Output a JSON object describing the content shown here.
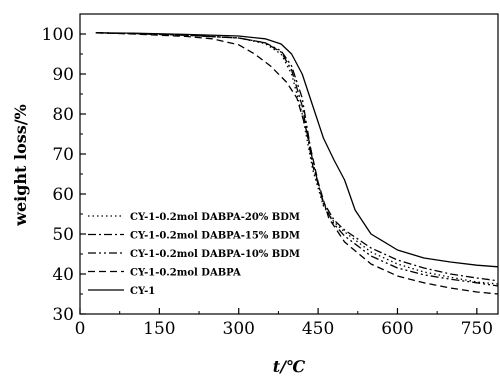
{
  "chart_data": {
    "type": "line",
    "xlabel": "t/℃",
    "ylabel": "weight loss/%",
    "xlim": [
      0,
      790
    ],
    "ylim": [
      30,
      105
    ],
    "xticks": [
      0,
      150,
      300,
      450,
      600,
      750
    ],
    "yticks": [
      30,
      40,
      50,
      60,
      70,
      80,
      90,
      100
    ],
    "grid": false,
    "legend_position": "bottom-left",
    "series": [
      {
        "name": "CY-1-0.2mol DABPA-20% BDM",
        "style": "dotted",
        "x": [
          30,
          100,
          200,
          300,
          350,
          380,
          400,
          420,
          440,
          460,
          480,
          500,
          550,
          600,
          650,
          700,
          750,
          790
        ],
        "y": [
          100.3,
          100.1,
          99.7,
          99.0,
          97.6,
          95.0,
          90.0,
          80.0,
          66.0,
          57.0,
          53.0,
          50.5,
          45.5,
          42.5,
          40.5,
          39.2,
          38.0,
          37.5
        ]
      },
      {
        "name": "CY-1-0.2mol DABPA-15% BDM",
        "style": "dashdot",
        "x": [
          30,
          100,
          200,
          300,
          350,
          380,
          400,
          420,
          440,
          460,
          480,
          500,
          550,
          600,
          650,
          700,
          750,
          790
        ],
        "y": [
          100.3,
          100.1,
          99.7,
          99.0,
          97.8,
          95.5,
          91.0,
          82.0,
          67.0,
          58.0,
          53.5,
          51.0,
          46.5,
          43.5,
          41.5,
          40.0,
          39.0,
          38.3
        ]
      },
      {
        "name": "CY-1-0.2mol DABPA-10% BDM",
        "style": "dashdotdot",
        "x": [
          30,
          100,
          200,
          300,
          350,
          380,
          400,
          420,
          440,
          460,
          480,
          500,
          550,
          600,
          650,
          700,
          750,
          790
        ],
        "y": [
          100.3,
          100.1,
          99.7,
          99.0,
          97.8,
          95.8,
          92.0,
          84.0,
          68.0,
          57.5,
          52.5,
          49.5,
          44.5,
          41.5,
          39.8,
          38.7,
          37.8,
          37.0
        ]
      },
      {
        "name": "CY-1-0.2mol DABPA",
        "style": "dashed",
        "x": [
          30,
          100,
          200,
          250,
          300,
          330,
          360,
          390,
          410,
          430,
          450,
          470,
          500,
          550,
          600,
          650,
          700,
          750,
          790
        ],
        "y": [
          100.3,
          100.0,
          99.4,
          98.8,
          97.3,
          95.0,
          92.0,
          88.0,
          84.0,
          75.0,
          63.0,
          54.0,
          48.0,
          42.5,
          39.5,
          37.8,
          36.5,
          35.5,
          35.0
        ]
      },
      {
        "name": "CY-1",
        "style": "solid",
        "x": [
          30,
          100,
          200,
          300,
          350,
          380,
          400,
          420,
          440,
          460,
          480,
          500,
          520,
          550,
          600,
          650,
          700,
          750,
          790
        ],
        "y": [
          100.3,
          100.2,
          99.9,
          99.5,
          98.8,
          97.5,
          95.0,
          90.0,
          82.0,
          74.0,
          68.5,
          63.5,
          56.0,
          50.0,
          46.0,
          44.0,
          43.0,
          42.2,
          41.8
        ]
      }
    ]
  }
}
